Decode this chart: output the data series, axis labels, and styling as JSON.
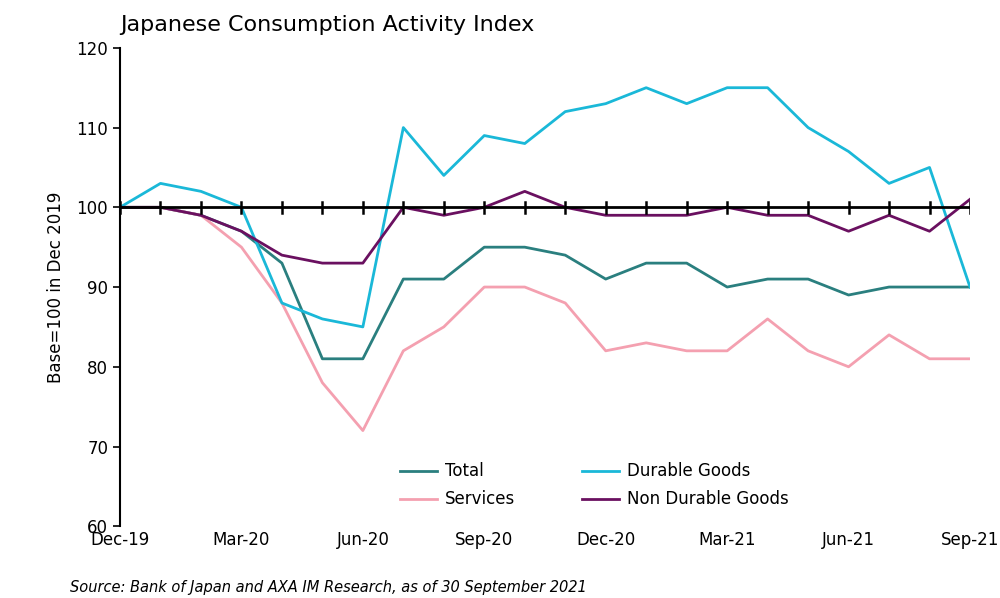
{
  "title": "Japanese Consumption Activity Index",
  "ylabel": "Base=100 in Dec 2019",
  "source": "Source: Bank of Japan and AXA IM Research, as of 30 September 2021",
  "ylim": [
    60,
    120
  ],
  "yticks": [
    60,
    70,
    80,
    90,
    100,
    110,
    120
  ],
  "x_labels": [
    "Dec-19",
    "Mar-20",
    "Jun-20",
    "Sep-20",
    "Dec-20",
    "Mar-21",
    "Jun-21",
    "Sep-21"
  ],
  "x_positions": [
    0,
    3,
    6,
    9,
    12,
    15,
    18,
    21
  ],
  "colors": {
    "Total": "#2a7f7f",
    "Services": "#f4a0b0",
    "Durable Goods": "#1ab8d8",
    "Non Durable Goods": "#6a1060"
  },
  "reference_line": 100,
  "series": {
    "Total": [
      100,
      100,
      99,
      97,
      93,
      81,
      81,
      91,
      91,
      95,
      95,
      94,
      91,
      93,
      93,
      90,
      91,
      91,
      89,
      90,
      90,
      90
    ],
    "Services": [
      100,
      100,
      99,
      95,
      88,
      78,
      72,
      82,
      85,
      90,
      90,
      88,
      82,
      83,
      82,
      82,
      86,
      82,
      80,
      84,
      81,
      81
    ],
    "Durable Goods": [
      100,
      103,
      102,
      100,
      88,
      86,
      85,
      110,
      104,
      109,
      108,
      112,
      113,
      115,
      113,
      115,
      115,
      110,
      107,
      103,
      105,
      90
    ],
    "Non Durable Goods": [
      100,
      100,
      99,
      97,
      94,
      93,
      93,
      100,
      99,
      100,
      102,
      100,
      99,
      99,
      99,
      100,
      99,
      99,
      97,
      99,
      97,
      101
    ]
  }
}
